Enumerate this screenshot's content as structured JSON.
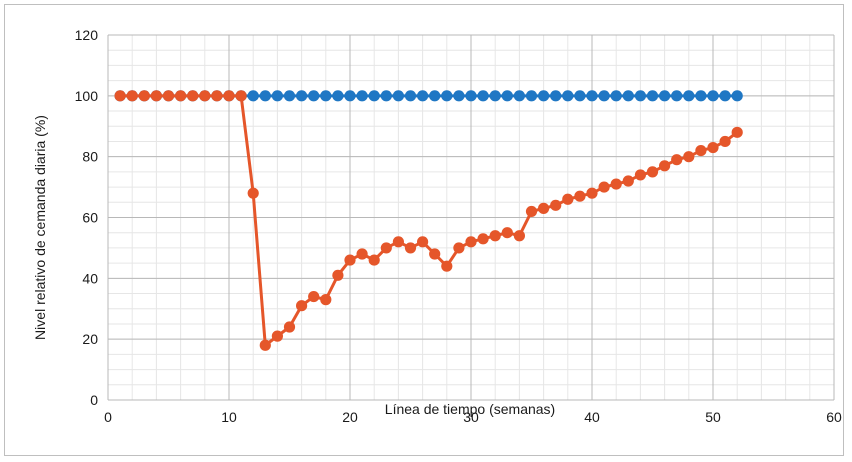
{
  "chart_data": {
    "type": "line",
    "title": "",
    "xlabel": "Línea de tiempo (semanas)",
    "ylabel": "Nivel relativo de cemanda diaria (%)",
    "xlim": [
      0,
      60
    ],
    "ylim": [
      0,
      120
    ],
    "x_ticks": [
      "0",
      "10",
      "20",
      "30",
      "40",
      "50",
      "60"
    ],
    "y_ticks": [
      "0",
      "20",
      "40",
      "60",
      "80",
      "100",
      "120"
    ],
    "grid": true,
    "legend": "none",
    "x": [
      1,
      2,
      3,
      4,
      5,
      6,
      7,
      8,
      9,
      10,
      11,
      12,
      13,
      14,
      15,
      16,
      17,
      18,
      19,
      20,
      21,
      22,
      23,
      24,
      25,
      26,
      27,
      28,
      29,
      30,
      31,
      32,
      33,
      34,
      35,
      36,
      37,
      38,
      39,
      40,
      41,
      42,
      43,
      44,
      45,
      46,
      47,
      48,
      49,
      50,
      51,
      52
    ],
    "series": [
      {
        "color": "#1f77c4",
        "values": [
          100,
          100,
          100,
          100,
          100,
          100,
          100,
          100,
          100,
          100,
          100,
          100,
          100,
          100,
          100,
          100,
          100,
          100,
          100,
          100,
          100,
          100,
          100,
          100,
          100,
          100,
          100,
          100,
          100,
          100,
          100,
          100,
          100,
          100,
          100,
          100,
          100,
          100,
          100,
          100,
          100,
          100,
          100,
          100,
          100,
          100,
          100,
          100,
          100,
          100,
          100,
          100
        ]
      },
      {
        "color": "#e5562a",
        "values": [
          100,
          100,
          100,
          100,
          100,
          100,
          100,
          100,
          100,
          100,
          100,
          68,
          18,
          21,
          24,
          31,
          34,
          33,
          41,
          46,
          48,
          46,
          50,
          52,
          50,
          52,
          48,
          44,
          50,
          52,
          53,
          54,
          55,
          54,
          62,
          63,
          64,
          66,
          67,
          68,
          70,
          71,
          72,
          74,
          75,
          77,
          79,
          80,
          82,
          83,
          85,
          88
        ]
      }
    ]
  }
}
